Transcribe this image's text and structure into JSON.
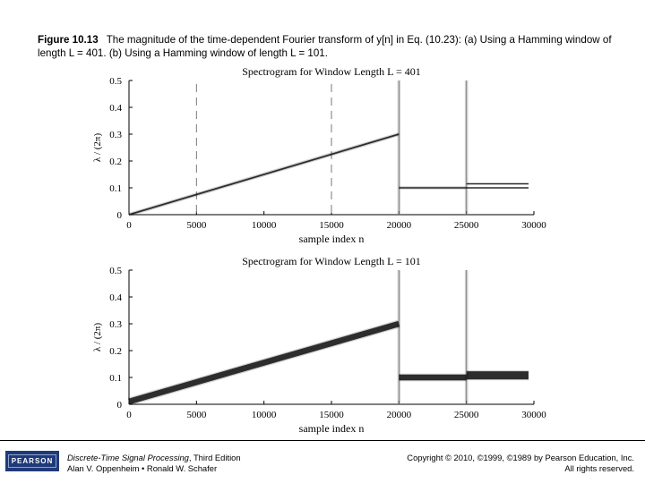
{
  "caption": {
    "figure_label": "Figure 10.13",
    "text": "The magnitude of the time-dependent Fourier transform of y[n] in Eq. (10.23): (a) Using a Hamming window of length L = 401. (b) Using a Hamming window of length L = 101."
  },
  "chart_data": [
    {
      "type": "heatmap",
      "title": "Spectrogram for Window Length  L = 401",
      "xlabel": "sample index  n",
      "ylabel": "λ / (2π)",
      "xlim": [
        0,
        30000
      ],
      "ylim": [
        0,
        0.5
      ],
      "x_ticks": [
        "0",
        "5000",
        "10000",
        "15000",
        "20000",
        "25000",
        "30000"
      ],
      "y_ticks": [
        "0",
        "0.1",
        "0.2",
        "0.3",
        "0.4",
        "0.5"
      ],
      "dashed_markers_x": [
        5000,
        15000
      ],
      "segments": [
        {
          "shape": "chirp",
          "x_start": 0,
          "x_end": 20000,
          "y_start": 0,
          "y_end": 0.3,
          "band_width": 0.006
        },
        {
          "shape": "tone",
          "x_start": 20000,
          "x_end": 25000,
          "y": 0.1,
          "band_width": 0.004
        },
        {
          "shape": "two-tones",
          "x_start": 25000,
          "x_end": 29600,
          "y": [
            0.1,
            0.115
          ],
          "band_width": 0.003
        }
      ],
      "transients_x": [
        20000,
        25000
      ]
    },
    {
      "type": "heatmap",
      "title": "Spectrogram for Window Length  L = 101",
      "xlabel": "sample index  n",
      "ylabel": "λ / (2π)",
      "xlim": [
        0,
        30000
      ],
      "ylim": [
        0,
        0.5
      ],
      "x_ticks": [
        "0",
        "5000",
        "10000",
        "15000",
        "20000",
        "25000",
        "30000"
      ],
      "y_ticks": [
        "0",
        "0.1",
        "0.2",
        "0.3",
        "0.4",
        "0.5"
      ],
      "segments": [
        {
          "shape": "chirp",
          "x_start": 0,
          "x_end": 20000,
          "y_start": 0.01,
          "y_end": 0.3,
          "band_width": 0.022
        },
        {
          "shape": "tone",
          "x_start": 20000,
          "x_end": 25000,
          "y": 0.1,
          "band_width": 0.022
        },
        {
          "shape": "merged-tones",
          "x_start": 25000,
          "x_end": 29600,
          "y": 0.108,
          "band_width": 0.03
        }
      ],
      "transients_x": [
        20000,
        25000
      ]
    }
  ],
  "footer": {
    "logo": "PEARSON",
    "book_title": "Discrete-Time Signal Processing",
    "edition": ", Third Edition",
    "authors": "Alan V. Oppenheim • Ronald W. Schafer",
    "copyright": "Copyright © 2010, ©1999, ©1989 by Pearson Education, Inc.",
    "rights": "All rights reserved."
  },
  "colors": {
    "band": "#111111",
    "axis": "#000000",
    "logo_bg": "#1f3a78"
  }
}
